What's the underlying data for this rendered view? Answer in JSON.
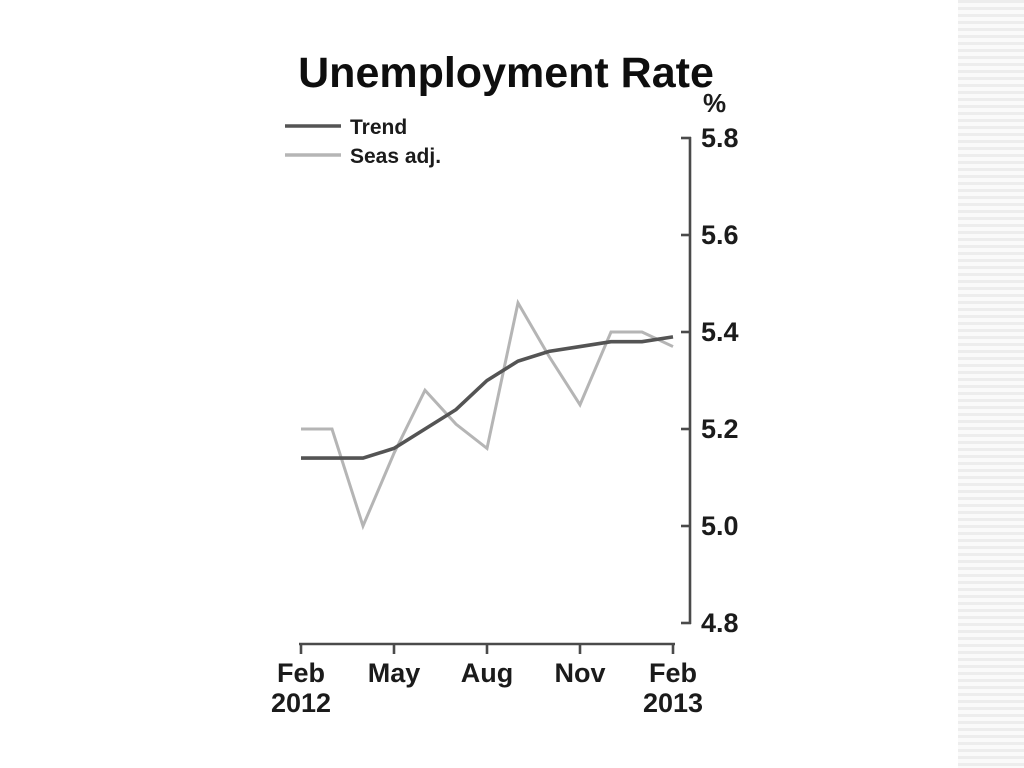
{
  "title": "Unemployment Rate",
  "chart_data": {
    "type": "line",
    "title": "Unemployment Rate",
    "ylabel": "%",
    "ylim": [
      4.8,
      5.8
    ],
    "y_tick_labels": [
      "5.8",
      "5.6",
      "5.4",
      "5.2",
      "5.0",
      "4.8"
    ],
    "x": [
      "Feb 2012",
      "Mar 2012",
      "Apr 2012",
      "May 2012",
      "Jun 2012",
      "Jul 2012",
      "Aug 2012",
      "Sep 2012",
      "Oct 2012",
      "Nov 2012",
      "Dec 2012",
      "Jan 2013",
      "Feb 2013"
    ],
    "x_tick_months": [
      "Feb",
      "May",
      "Aug",
      "Nov",
      "Feb"
    ],
    "x_tick_month_indexes": [
      0,
      3,
      6,
      9,
      12
    ],
    "x_tick_years": {
      "first": "2012",
      "last": "2013"
    },
    "grid": false,
    "axis_side": "right",
    "legend_position": "top-left",
    "series": [
      {
        "name": "Trend",
        "color": "#545454",
        "values": [
          5.14,
          5.14,
          5.14,
          5.16,
          5.2,
          5.24,
          5.3,
          5.34,
          5.36,
          5.37,
          5.38,
          5.38,
          5.39
        ]
      },
      {
        "name": "Seas adj.",
        "color": "#b5b5b5",
        "values": [
          5.2,
          5.2,
          5.0,
          5.15,
          5.28,
          5.21,
          5.16,
          5.46,
          5.35,
          5.25,
          5.4,
          5.4,
          5.37
        ]
      }
    ],
    "axis_color": "#4a4a4a"
  }
}
